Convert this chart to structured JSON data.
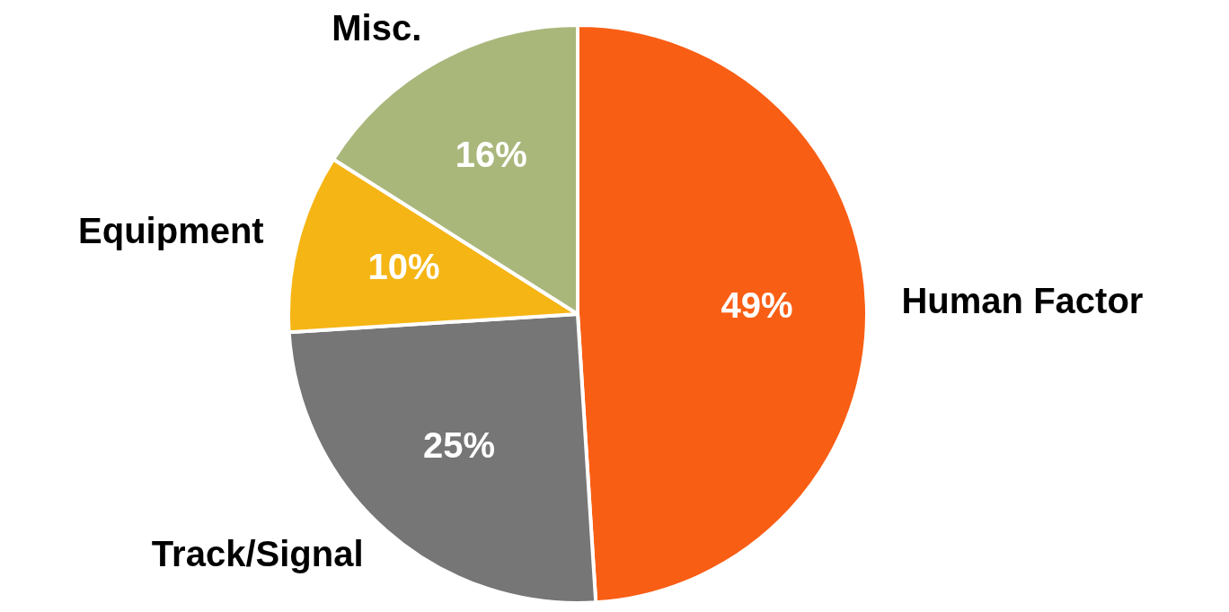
{
  "chart_data": {
    "type": "pie",
    "categories": [
      "Human Factor",
      "Track/Signal",
      "Equipment",
      "Misc."
    ],
    "values": [
      49,
      25,
      10,
      16
    ],
    "colors": [
      "#f95e15",
      "#767676",
      "#f5b515",
      "#a9b77b"
    ],
    "value_labels": [
      "49%",
      "25%",
      "10%",
      "16%"
    ]
  }
}
